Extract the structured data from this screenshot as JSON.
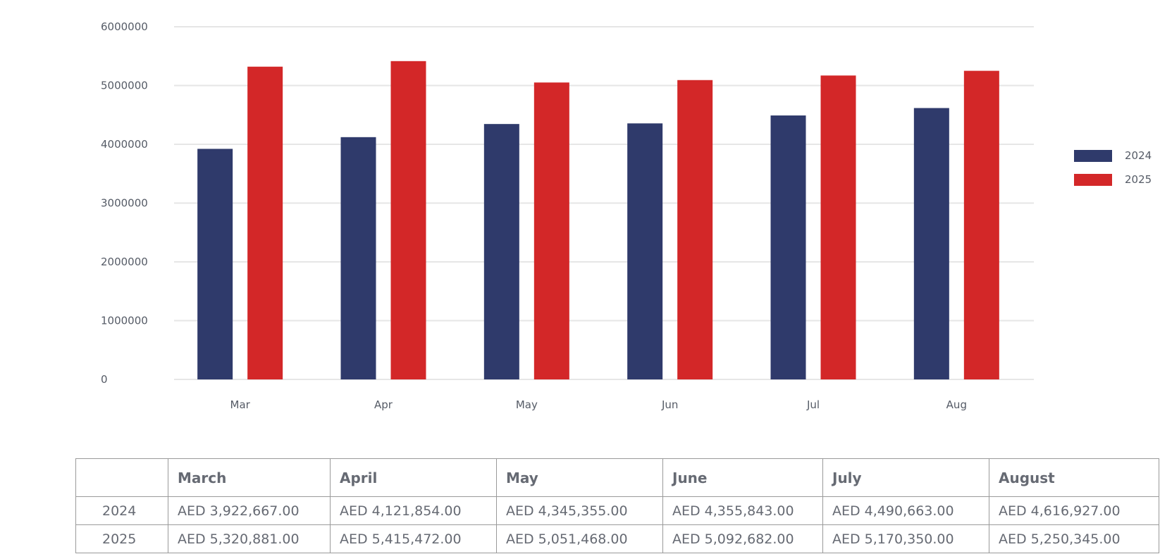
{
  "chart_data": {
    "type": "bar",
    "categories": [
      "Mar",
      "Apr",
      "May",
      "Jun",
      "Jul",
      "Aug"
    ],
    "series": [
      {
        "name": "2024",
        "color": "#2f3a6b",
        "values": [
          3922667,
          4121854,
          4345355,
          4355843,
          4490663,
          4616927
        ]
      },
      {
        "name": "2025",
        "color": "#d32728",
        "values": [
          5320881,
          5415472,
          5051468,
          5092682,
          5170350,
          5250345
        ]
      }
    ],
    "yticks": [
      "0",
      "1000000",
      "2000000",
      "3000000",
      "4000000",
      "5000000",
      "6000000"
    ],
    "ylim": [
      0,
      6000000
    ],
    "grid": true,
    "legend_position": "right"
  },
  "table": {
    "headers": [
      "",
      "March",
      "April",
      "May",
      "June",
      "July",
      "August"
    ],
    "rows": [
      {
        "label": "2024",
        "cells": [
          "AED 3,922,667.00",
          "AED 4,121,854.00",
          "AED 4,345,355.00",
          "AED 4,355,843.00",
          "AED 4,490,663.00",
          "AED 4,616,927.00"
        ]
      },
      {
        "label": "2025",
        "cells": [
          "AED 5,320,881.00",
          "AED 5,415,472.00",
          "AED 5,051,468.00",
          "AED 5,092,682.00",
          "AED 5,170,350.00",
          "AED 5,250,345.00"
        ]
      }
    ]
  }
}
